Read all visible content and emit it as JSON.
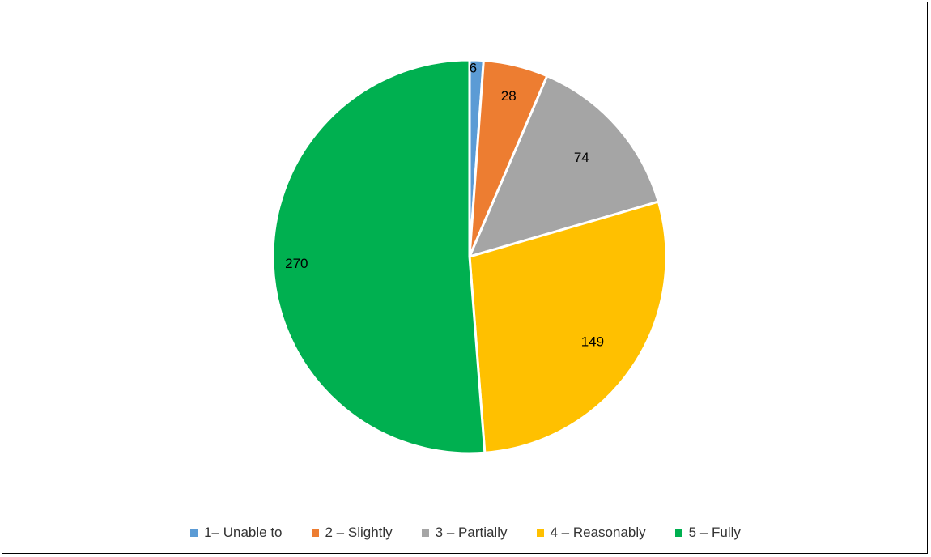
{
  "chart_data": {
    "type": "pie",
    "title": "",
    "legend_position": "bottom",
    "categories": [
      "1– Unable to",
      "2 – Slightly",
      "3 – Partially",
      "4 – Reasonably",
      "5 – Fully"
    ],
    "values": [
      6,
      28,
      74,
      149,
      270
    ],
    "data_labels": [
      "6",
      "28",
      "74",
      "149",
      "270"
    ],
    "colors": [
      "#5B9BD5",
      "#ED7D31",
      "#A5A5A5",
      "#FFC000",
      "#00B050"
    ]
  }
}
